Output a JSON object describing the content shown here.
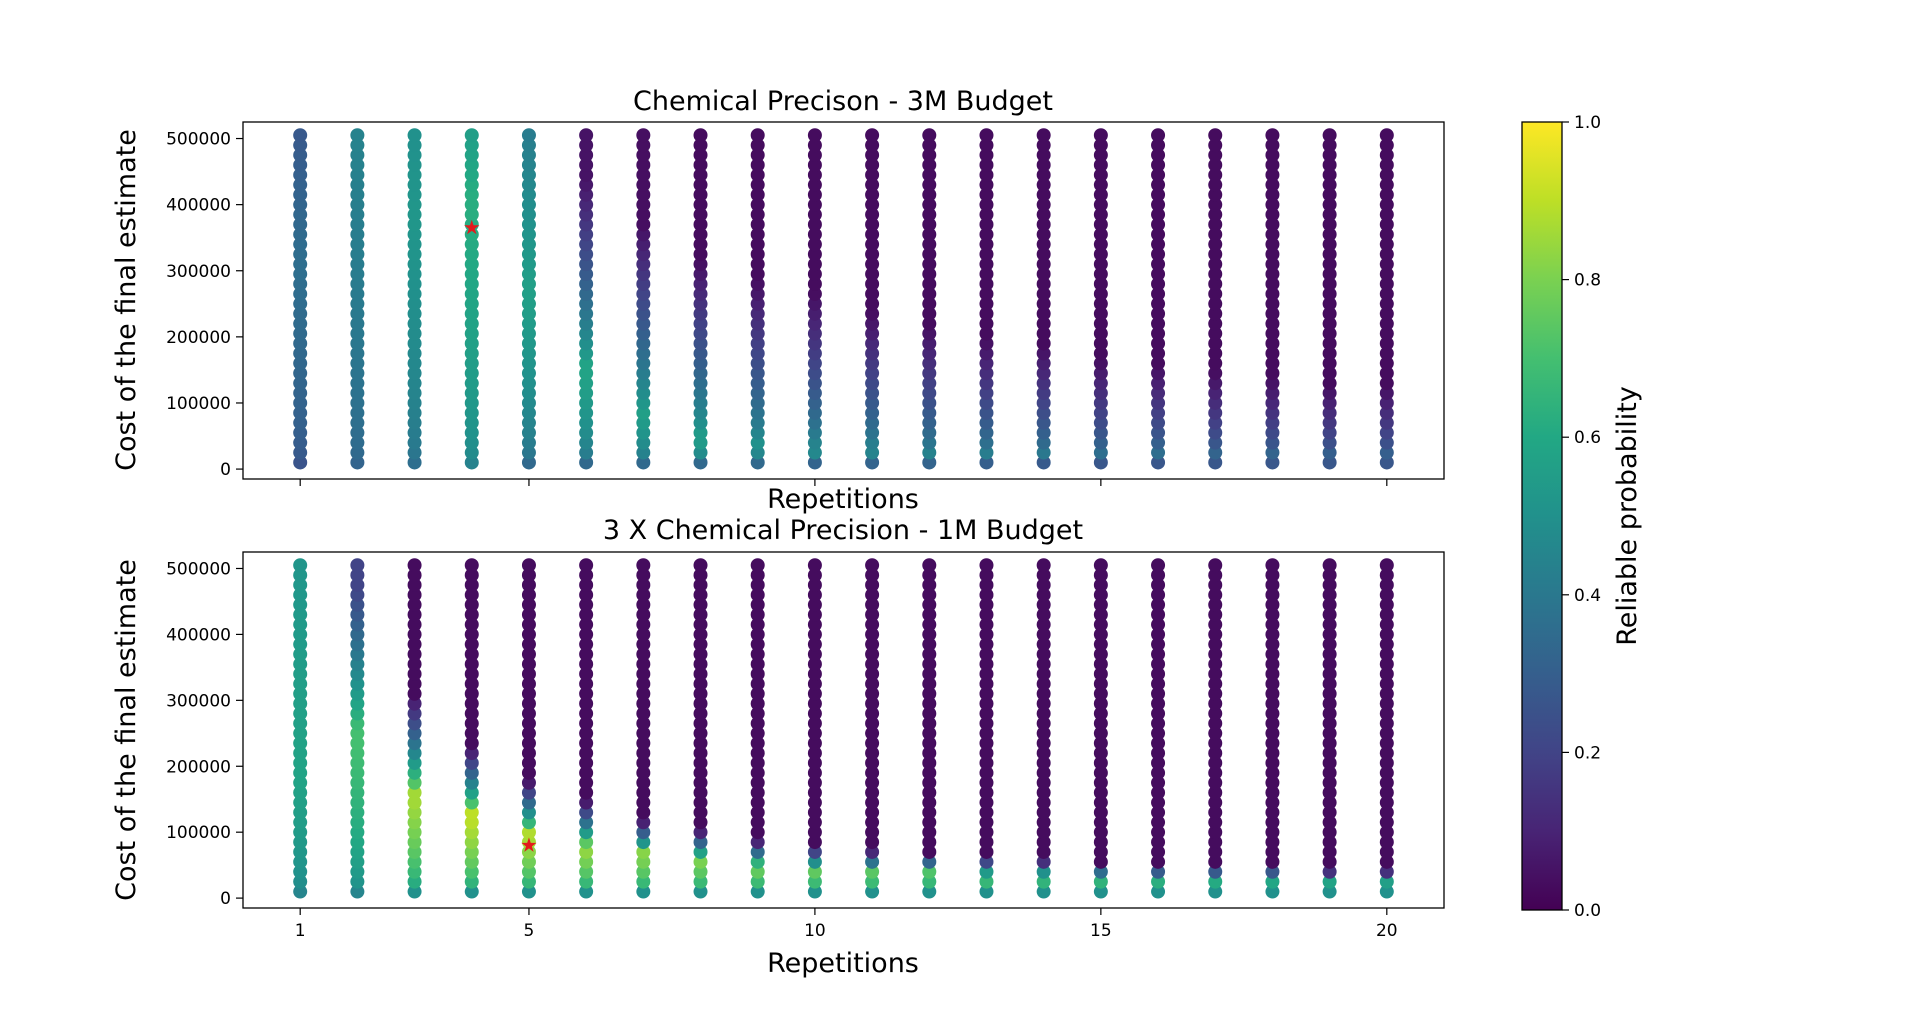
{
  "chart_data": [
    {
      "type": "scatter",
      "title": "Chemical Precison - 3M Budget",
      "xlabel": "Repetitions",
      "ylabel": "Cost of the final estimate",
      "xlim": [
        0,
        21
      ],
      "ylim": [
        -15000,
        525000
      ],
      "x_ticks": [
        1,
        5,
        10,
        15,
        20
      ],
      "x_tick_labels_visible": false,
      "y_ticks": [
        0,
        100000,
        200000,
        300000,
        400000,
        500000
      ],
      "y_tick_labels": [
        "0",
        "100000",
        "200000",
        "300000",
        "400000",
        "500000"
      ],
      "repetitions": [
        1,
        2,
        3,
        4,
        5,
        6,
        7,
        8,
        9,
        10,
        11,
        12,
        13,
        14,
        15,
        16,
        17,
        18,
        19,
        20
      ],
      "cost_values": {
        "start": 10000,
        "step": 15000,
        "count": 34
      },
      "probability_profile": {
        "low_cost_prob": [
          0.26,
          0.32,
          0.36,
          0.44,
          0.34,
          0.34,
          0.34,
          0.34,
          0.34,
          0.32,
          0.32,
          0.32,
          0.3,
          0.28,
          0.27,
          0.27,
          0.27,
          0.27,
          0.27,
          0.27
        ],
        "peak_prob": [
          0.36,
          0.42,
          0.52,
          0.62,
          0.56,
          0.58,
          0.56,
          0.56,
          0.5,
          0.48,
          0.46,
          0.44,
          0.42,
          0.4,
          0.36,
          0.36,
          0.32,
          0.32,
          0.3,
          0.3
        ],
        "peak_cost": [
          320000,
          360000,
          400000,
          420000,
          280000,
          160000,
          90000,
          50000,
          40000,
          30000,
          30000,
          25000,
          25000,
          25000,
          25000,
          25000,
          25000,
          25000,
          25000,
          25000
        ],
        "decay_cost": [
          999999,
          999999,
          999999,
          999999,
          999999,
          440000,
          370000,
          320000,
          290000,
          270000,
          240000,
          220000,
          200000,
          190000,
          170000,
          160000,
          150000,
          140000,
          130000,
          130000
        ],
        "high_cost_prob": [
          0.28,
          0.44,
          0.5,
          0.56,
          0.42,
          0.05,
          0.04,
          0.03,
          0.03,
          0.03,
          0.03,
          0.03,
          0.03,
          0.03,
          0.03,
          0.03,
          0.03,
          0.03,
          0.03,
          0.03
        ]
      },
      "optimum": {
        "repetitions": 4,
        "cost": 365000,
        "marker": "star",
        "color": "#e31a1c"
      }
    },
    {
      "type": "scatter",
      "title": "3 X Chemical Precision - 1M Budget",
      "xlabel": "Repetitions",
      "ylabel": "Cost of the final estimate",
      "xlim": [
        0,
        21
      ],
      "ylim": [
        -15000,
        525000
      ],
      "x_ticks": [
        1,
        5,
        10,
        15,
        20
      ],
      "x_tick_labels": [
        "1",
        "5",
        "10",
        "15",
        "20"
      ],
      "y_ticks": [
        0,
        100000,
        200000,
        300000,
        400000,
        500000
      ],
      "y_tick_labels": [
        "0",
        "100000",
        "200000",
        "300000",
        "400000",
        "500000"
      ],
      "repetitions": [
        1,
        2,
        3,
        4,
        5,
        6,
        7,
        8,
        9,
        10,
        11,
        12,
        13,
        14,
        15,
        16,
        17,
        18,
        19,
        20
      ],
      "cost_values": {
        "start": 10000,
        "step": 15000,
        "count": 34
      },
      "probability_profile": {
        "low_cost_prob": [
          0.45,
          0.45,
          0.5,
          0.5,
          0.5,
          0.5,
          0.5,
          0.5,
          0.5,
          0.5,
          0.5,
          0.5,
          0.5,
          0.5,
          0.5,
          0.5,
          0.5,
          0.5,
          0.5,
          0.5
        ],
        "peak_prob": [
          0.58,
          0.7,
          0.86,
          0.9,
          0.88,
          0.84,
          0.82,
          0.8,
          0.78,
          0.76,
          0.74,
          0.72,
          0.7,
          0.68,
          0.66,
          0.64,
          0.62,
          0.6,
          0.58,
          0.56
        ],
        "peak_cost": [
          200000,
          260000,
          160000,
          130000,
          100000,
          80000,
          70000,
          60000,
          50000,
          45000,
          40000,
          40000,
          35000,
          35000,
          30000,
          30000,
          30000,
          30000,
          25000,
          25000
        ],
        "decay_cost": [
          999999,
          470000,
          310000,
          230000,
          180000,
          150000,
          120000,
          105000,
          90000,
          80000,
          75000,
          70000,
          65000,
          60000,
          55000,
          50000,
          50000,
          50000,
          45000,
          45000
        ],
        "high_cost_prob": [
          0.52,
          0.2,
          0.03,
          0.03,
          0.03,
          0.03,
          0.03,
          0.03,
          0.03,
          0.03,
          0.03,
          0.03,
          0.03,
          0.03,
          0.03,
          0.03,
          0.03,
          0.03,
          0.03,
          0.03
        ]
      },
      "optimum": {
        "repetitions": 5,
        "cost": 80000,
        "marker": "star",
        "color": "#e31a1c"
      }
    }
  ],
  "colorbar": {
    "label": "Reliable probability",
    "colormap": "viridis",
    "range": [
      0.0,
      1.0
    ],
    "ticks": [
      0.0,
      0.2,
      0.4,
      0.6,
      0.8,
      1.0
    ],
    "tick_labels": [
      "0.0",
      "0.2",
      "0.4",
      "0.6",
      "0.8",
      "1.0"
    ]
  }
}
